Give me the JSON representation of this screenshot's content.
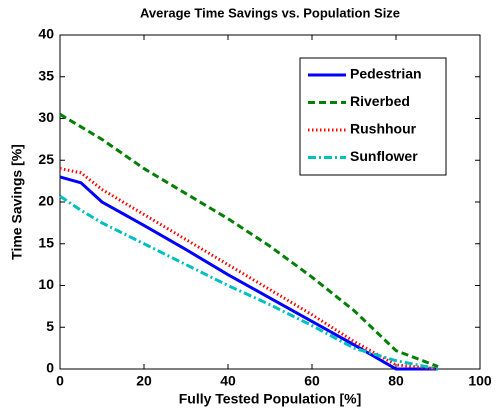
{
  "chart_data": {
    "type": "line",
    "title": "Average Time Savings vs. Population Size",
    "xlabel": "Fully Tested Population [%]",
    "ylabel": "Time Savings [%]",
    "x": [
      0,
      5,
      10,
      20,
      30,
      40,
      50,
      60,
      70,
      80,
      90
    ],
    "series": [
      {
        "name": "Pedestrian",
        "color": "#0000ff",
        "style": "solid",
        "values": [
          23,
          22.3,
          20,
          17.2,
          14.3,
          11.3,
          8.5,
          5.7,
          2.9,
          0,
          0
        ]
      },
      {
        "name": "Riverbed",
        "color": "#008000",
        "style": "dashed",
        "values": [
          30.5,
          29,
          27.5,
          24,
          21,
          18,
          14.7,
          11,
          7,
          2.2,
          0.3
        ]
      },
      {
        "name": "Rushhour",
        "color": "#ff0000",
        "style": "dotted",
        "values": [
          24,
          23.5,
          21.5,
          18.5,
          15.5,
          12.5,
          9.5,
          6.5,
          3.3,
          0.5,
          0
        ]
      },
      {
        "name": "Sunflower",
        "color": "#00bfbf",
        "style": "dashdot",
        "values": [
          20.7,
          19,
          17.5,
          15,
          12.5,
          10,
          7.7,
          5.2,
          2.5,
          1,
          0
        ]
      }
    ],
    "xlim": [
      0,
      100
    ],
    "xticks": [
      0,
      20,
      40,
      60,
      80,
      100
    ],
    "ylim": [
      0,
      40
    ],
    "yticks": [
      0,
      5,
      10,
      15,
      20,
      25,
      30,
      35,
      40
    ],
    "legend": "northeast"
  }
}
